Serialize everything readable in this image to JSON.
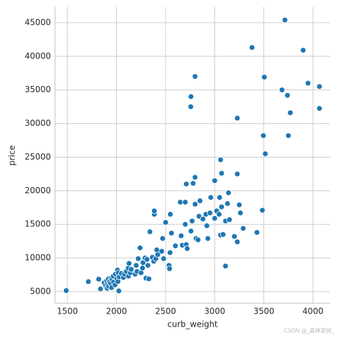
{
  "chart_data": {
    "type": "scatter",
    "x_label": "curb_weight",
    "y_label": "price",
    "color": "#1f77b4",
    "grid": true,
    "watermark": "CSDN @_森林望岗_",
    "xlim": [
      1374,
      4175
    ],
    "ylim": [
      3260,
      47350
    ],
    "xticks": [
      1500,
      2000,
      2500,
      3000,
      3500,
      4000
    ],
    "yticks": [
      5000,
      10000,
      15000,
      20000,
      25000,
      30000,
      35000,
      40000,
      45000
    ],
    "x": [
      1488,
      1713,
      1819,
      1837,
      2024,
      2800,
      2758,
      2756,
      3230,
      3380,
      3715,
      3900,
      3950,
      4066,
      4066,
      3685,
      3740,
      3770,
      3750,
      3495,
      3505,
      3515,
      3485,
      3430,
      3110,
      3060,
      3070,
      3000,
      3230,
      2800,
      2710,
      2780,
      1874,
      1890,
      1900,
      1905,
      1909,
      1918,
      1920,
      1930,
      1940,
      1945,
      1950,
      1955,
      1967,
      1970,
      1985,
      1989,
      2004,
      2010,
      2015,
      2017,
      2028,
      2050,
      2070,
      2080,
      2100,
      2120,
      2122,
      2128,
      2140,
      2150,
      2190,
      2200,
      2209,
      2221,
      2240,
      2250,
      2265,
      2270,
      2290,
      2300,
      2310,
      2320,
      2330,
      2340,
      2365,
      2380,
      2385,
      2385,
      2400,
      2410,
      2420,
      2460,
      2470,
      2480,
      2500,
      2535,
      2540,
      2545,
      2548,
      2560,
      2600,
      2650,
      2658,
      2670,
      2700,
      2700,
      2710,
      2720,
      2758,
      2770,
      2800,
      2810,
      2830,
      2840,
      2850,
      2880,
      2910,
      2920,
      2930,
      2952,
      2960,
      3000,
      3020,
      3045,
      3050,
      3060,
      3070,
      3085,
      3110,
      3130,
      3140,
      3150,
      3200,
      3230,
      3250,
      3262,
      3290
    ],
    "values": [
      5150,
      6480,
      6850,
      5400,
      5100,
      37000,
      34000,
      32500,
      30800,
      41300,
      45400,
      40900,
      36000,
      35500,
      32250,
      35000,
      34200,
      31600,
      28200,
      28200,
      36900,
      25500,
      17100,
      13800,
      8800,
      24600,
      22600,
      21500,
      22500,
      22000,
      21000,
      21100,
      6300,
      5900,
      6600,
      5500,
      6100,
      6900,
      5800,
      6500,
      6200,
      7000,
      5600,
      6800,
      7300,
      6400,
      6000,
      7600,
      6900,
      8200,
      6500,
      7800,
      7200,
      7700,
      7100,
      7600,
      8000,
      8500,
      7300,
      9200,
      7800,
      8300,
      7600,
      8900,
      8000,
      9900,
      11500,
      7800,
      8500,
      9300,
      10000,
      7000,
      9800,
      8900,
      6900,
      13900,
      10100,
      9500,
      16500,
      17000,
      9900,
      11200,
      10500,
      11000,
      12900,
      9900,
      15300,
      8900,
      8400,
      10800,
      16500,
      13700,
      11800,
      18300,
      13300,
      11900,
      18300,
      15000,
      12000,
      11400,
      14000,
      15500,
      18000,
      12900,
      12700,
      16200,
      18500,
      15800,
      16500,
      14800,
      12900,
      16700,
      19000,
      15900,
      17000,
      16500,
      19000,
      13400,
      17600,
      13500,
      15500,
      18100,
      19700,
      15700,
      13200,
      12400,
      17900,
      16700,
      14400
    ]
  }
}
